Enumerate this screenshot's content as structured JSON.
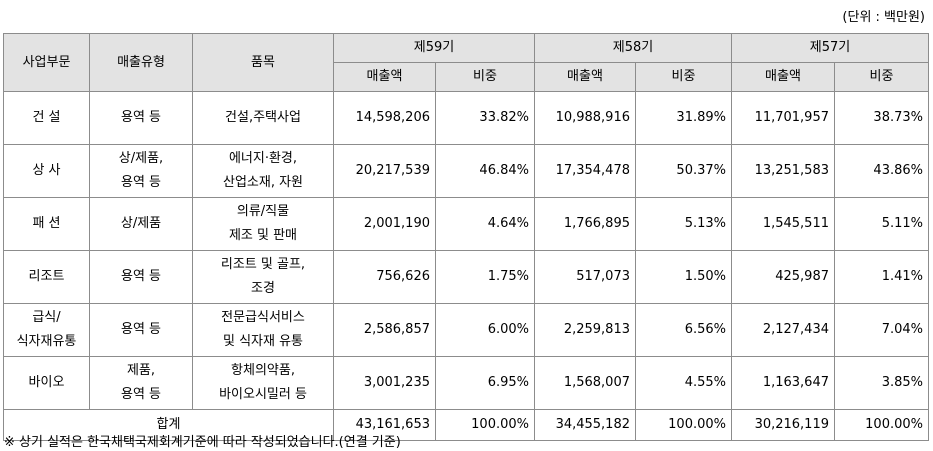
{
  "unit_note": "(단위 : 백만원)",
  "headers": {
    "division": "사업부문",
    "sales_type": "매출유형",
    "item": "품목",
    "periods": [
      "제59기",
      "제58기",
      "제57기"
    ],
    "sales": "매출액",
    "ratio": "비중"
  },
  "rows": [
    {
      "division": [
        "건 설"
      ],
      "sales_type": [
        "용역 등"
      ],
      "item": [
        "건설,주택사업"
      ],
      "p59": {
        "sales": "14,598,206",
        "ratio": "33.82%"
      },
      "p58": {
        "sales": "10,988,916",
        "ratio": "31.89%"
      },
      "p57": {
        "sales": "11,701,957",
        "ratio": "38.73%"
      }
    },
    {
      "division": [
        "상 사"
      ],
      "sales_type": [
        "상/제품,",
        "용역 등"
      ],
      "item": [
        "에너지·환경,",
        "산업소재, 자원"
      ],
      "p59": {
        "sales": "20,217,539",
        "ratio": "46.84%"
      },
      "p58": {
        "sales": "17,354,478",
        "ratio": "50.37%"
      },
      "p57": {
        "sales": "13,251,583",
        "ratio": "43.86%"
      }
    },
    {
      "division": [
        "패 션"
      ],
      "sales_type": [
        "상/제품"
      ],
      "item": [
        "의류/직물",
        "제조 및 판매"
      ],
      "p59": {
        "sales": "2,001,190",
        "ratio": "4.64%"
      },
      "p58": {
        "sales": "1,766,895",
        "ratio": "5.13%"
      },
      "p57": {
        "sales": "1,545,511",
        "ratio": "5.11%"
      }
    },
    {
      "division": [
        "리조트"
      ],
      "sales_type": [
        "용역 등"
      ],
      "item": [
        "리조트 및 골프,",
        "조경"
      ],
      "p59": {
        "sales": "756,626",
        "ratio": "1.75%"
      },
      "p58": {
        "sales": "517,073",
        "ratio": "1.50%"
      },
      "p57": {
        "sales": "425,987",
        "ratio": "1.41%"
      }
    },
    {
      "division": [
        "급식/",
        "식자재유통"
      ],
      "sales_type": [
        "용역 등"
      ],
      "item": [
        "전문급식서비스",
        "및 식자재 유통"
      ],
      "p59": {
        "sales": "2,586,857",
        "ratio": "6.00%"
      },
      "p58": {
        "sales": "2,259,813",
        "ratio": "6.56%"
      },
      "p57": {
        "sales": "2,127,434",
        "ratio": "7.04%"
      }
    },
    {
      "division": [
        "바이오"
      ],
      "sales_type": [
        "제품,",
        "용역 등"
      ],
      "item": [
        "항체의약품,",
        "바이오시밀러 등"
      ],
      "p59": {
        "sales": "3,001,235",
        "ratio": "6.95%"
      },
      "p58": {
        "sales": "1,568,007",
        "ratio": "4.55%"
      },
      "p57": {
        "sales": "1,163,647",
        "ratio": "3.85%"
      }
    }
  ],
  "total": {
    "label": "합계",
    "p59": {
      "sales": "43,161,653",
      "ratio": "100.00%"
    },
    "p58": {
      "sales": "34,455,182",
      "ratio": "100.00%"
    },
    "p57": {
      "sales": "30,216,119",
      "ratio": "100.00%"
    }
  },
  "footnote": "※ 상기 실적은 한국채택국제회계기준에 따라 작성되었습니다.(연결 기준)"
}
